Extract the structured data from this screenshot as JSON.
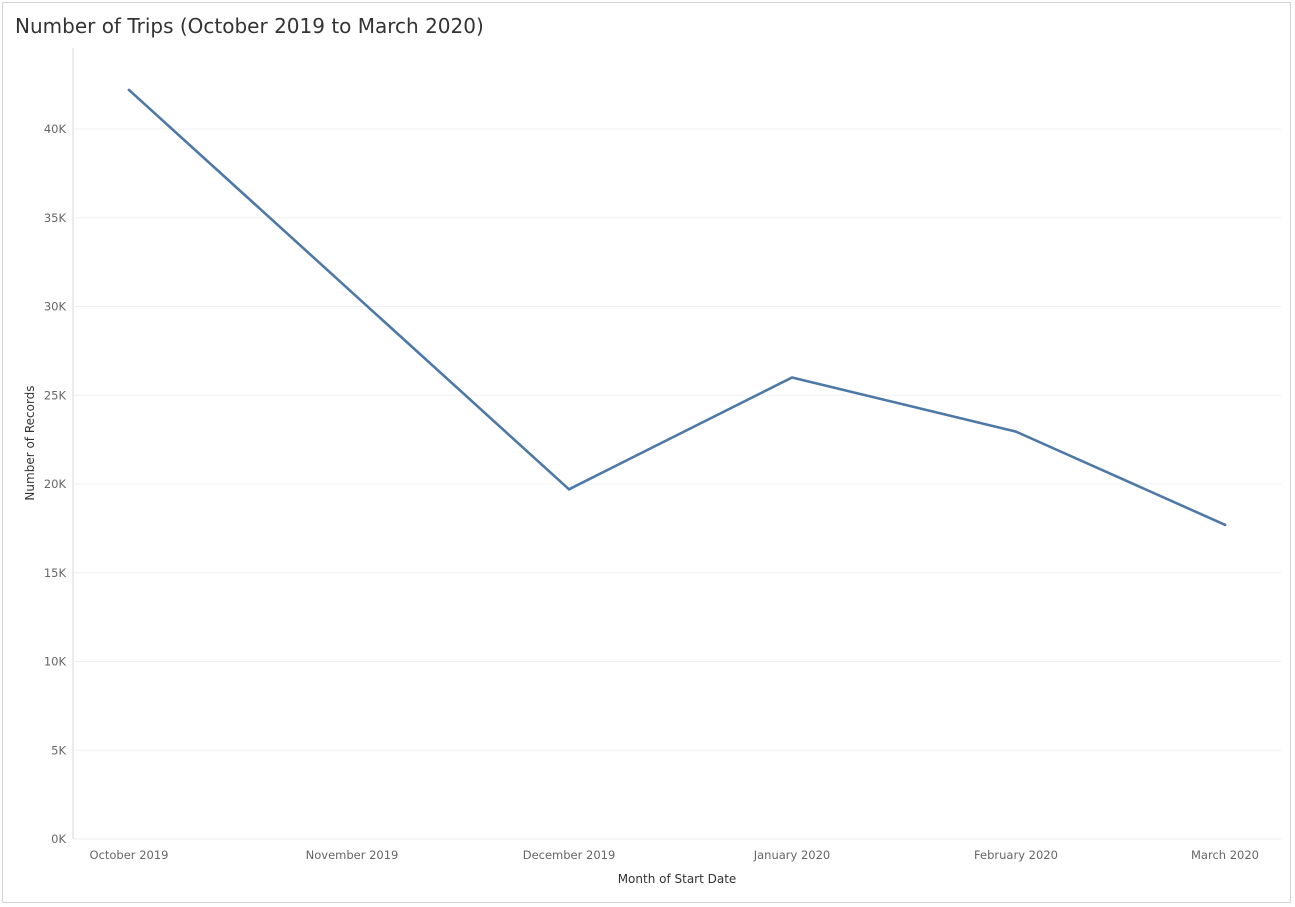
{
  "chart_data": {
    "type": "line",
    "title": "Number of Trips (October 2019 to March 2020)",
    "xlabel": "Month of Start Date",
    "ylabel": "Number of Records",
    "categories": [
      "October 2019",
      "November 2019",
      "December 2019",
      "January 2020",
      "February 2020",
      "March 2020"
    ],
    "series": [
      {
        "points": [
          {
            "x": "October 2019",
            "y": 42200
          },
          {
            "x": "December 2019",
            "y": 19700
          },
          {
            "x": "January 2020",
            "y": 26000
          },
          {
            "x": "February 2020",
            "y": 22950
          },
          {
            "x": "March 2020",
            "y": 17700
          }
        ],
        "color": "#4e79a7"
      }
    ],
    "yticks": [
      {
        "value": 0,
        "label": "0K"
      },
      {
        "value": 5000,
        "label": "5K"
      },
      {
        "value": 10000,
        "label": "10K"
      },
      {
        "value": 15000,
        "label": "15K"
      },
      {
        "value": 20000,
        "label": "20K"
      },
      {
        "value": 25000,
        "label": "25K"
      },
      {
        "value": 30000,
        "label": "30K"
      },
      {
        "value": 35000,
        "label": "35K"
      },
      {
        "value": 40000,
        "label": "40K"
      }
    ],
    "ylim": [
      0,
      44000
    ],
    "grid": true,
    "gridline_color": "#f0f0f0",
    "axis_color": "#d9d9d9",
    "line_color": "#4e79a7"
  }
}
